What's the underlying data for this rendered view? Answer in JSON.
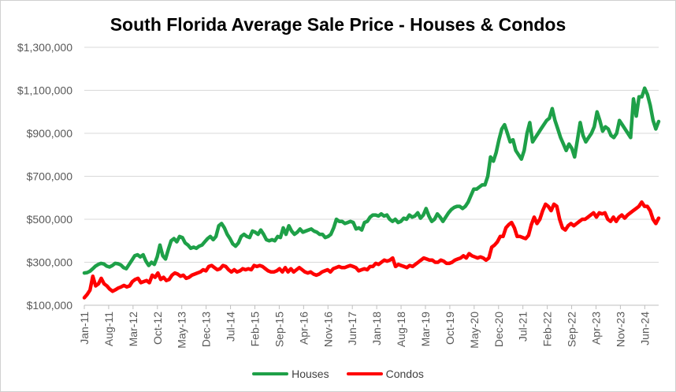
{
  "chart_data": {
    "type": "line",
    "title": "South Florida Average Sale Price - Houses & Condos",
    "ylim": [
      100000,
      1300000
    ],
    "yticks": [
      100000,
      300000,
      500000,
      700000,
      900000,
      1100000,
      1300000
    ],
    "ytick_labels": [
      "$100,000",
      "$300,000",
      "$500,000",
      "$700,000",
      "$900,000",
      "$1,100,000",
      "$1,300,000"
    ],
    "xtick_labels": [
      "Jan-11",
      "Aug-11",
      "Mar-12",
      "Oct-12",
      "May-13",
      "Dec-13",
      "Jul-14",
      "Feb-15",
      "Sep-15",
      "Apr-16",
      "Nov-16",
      "Jun-17",
      "Jan-18",
      "Aug-18",
      "Mar-19",
      "Oct-19",
      "May-20",
      "Dec-20",
      "Jul-21",
      "Feb-22",
      "Sep-22",
      "Apr-23",
      "Nov-23",
      "Jun-24"
    ],
    "x_start": "Jan-11",
    "x_end": "Oct-24",
    "grid": "horizontal",
    "legend_position": "bottom",
    "series": [
      {
        "name": "Houses",
        "color": "#1ea048",
        "values": [
          250000,
          252000,
          258000,
          270000,
          282000,
          290000,
          295000,
          292000,
          282000,
          278000,
          285000,
          295000,
          293000,
          288000,
          275000,
          270000,
          290000,
          310000,
          330000,
          335000,
          325000,
          335000,
          305000,
          285000,
          300000,
          290000,
          325000,
          380000,
          330000,
          315000,
          360000,
          400000,
          410000,
          395000,
          420000,
          415000,
          390000,
          380000,
          365000,
          370000,
          365000,
          375000,
          380000,
          395000,
          410000,
          420000,
          405000,
          420000,
          470000,
          480000,
          460000,
          430000,
          410000,
          385000,
          375000,
          390000,
          420000,
          430000,
          420000,
          415000,
          445000,
          440000,
          430000,
          450000,
          430000,
          405000,
          400000,
          405000,
          400000,
          420000,
          415000,
          460000,
          430000,
          470000,
          445000,
          430000,
          440000,
          455000,
          440000,
          445000,
          450000,
          455000,
          445000,
          440000,
          430000,
          430000,
          415000,
          420000,
          430000,
          460000,
          500000,
          490000,
          490000,
          480000,
          485000,
          490000,
          485000,
          455000,
          460000,
          450000,
          485000,
          490000,
          510000,
          520000,
          520000,
          515000,
          525000,
          515000,
          520000,
          500000,
          490000,
          500000,
          485000,
          490000,
          505000,
          500000,
          520000,
          510000,
          515000,
          530000,
          505000,
          520000,
          550000,
          515000,
          490000,
          500000,
          525000,
          510000,
          490000,
          510000,
          530000,
          545000,
          555000,
          560000,
          560000,
          550000,
          560000,
          580000,
          610000,
          640000,
          640000,
          650000,
          660000,
          660000,
          700000,
          790000,
          770000,
          810000,
          870000,
          920000,
          940000,
          900000,
          860000,
          870000,
          820000,
          800000,
          780000,
          820000,
          900000,
          950000,
          860000,
          880000,
          900000,
          920000,
          940000,
          960000,
          970000,
          1015000,
          960000,
          920000,
          880000,
          850000,
          820000,
          850000,
          830000,
          790000,
          870000,
          950000,
          890000,
          860000,
          880000,
          900000,
          930000,
          1000000,
          960000,
          910000,
          930000,
          920000,
          890000,
          880000,
          900000,
          960000,
          940000,
          920000,
          900000,
          880000,
          1060000,
          980000,
          1070000,
          1070000,
          1110000,
          1080000,
          1030000,
          960000,
          920000,
          955000
        ]
      },
      {
        "name": "Condos",
        "color": "#ff0000",
        "values": [
          135000,
          150000,
          170000,
          235000,
          190000,
          200000,
          225000,
          200000,
          190000,
          175000,
          165000,
          172000,
          180000,
          185000,
          192000,
          185000,
          190000,
          210000,
          220000,
          225000,
          205000,
          210000,
          215000,
          205000,
          240000,
          230000,
          250000,
          220000,
          230000,
          215000,
          220000,
          240000,
          250000,
          245000,
          235000,
          240000,
          225000,
          230000,
          240000,
          245000,
          250000,
          255000,
          265000,
          260000,
          280000,
          285000,
          275000,
          265000,
          270000,
          285000,
          280000,
          265000,
          255000,
          265000,
          255000,
          260000,
          270000,
          265000,
          270000,
          265000,
          285000,
          280000,
          285000,
          280000,
          270000,
          260000,
          255000,
          255000,
          260000,
          270000,
          255000,
          275000,
          255000,
          270000,
          255000,
          265000,
          275000,
          265000,
          255000,
          250000,
          255000,
          245000,
          240000,
          245000,
          255000,
          260000,
          265000,
          255000,
          270000,
          275000,
          280000,
          275000,
          275000,
          280000,
          285000,
          280000,
          275000,
          260000,
          265000,
          270000,
          265000,
          280000,
          280000,
          295000,
          290000,
          300000,
          310000,
          305000,
          310000,
          320000,
          280000,
          290000,
          285000,
          280000,
          275000,
          285000,
          280000,
          290000,
          300000,
          310000,
          320000,
          315000,
          310000,
          310000,
          300000,
          300000,
          310000,
          305000,
          295000,
          295000,
          300000,
          310000,
          315000,
          320000,
          330000,
          320000,
          340000,
          330000,
          325000,
          320000,
          325000,
          320000,
          310000,
          320000,
          370000,
          380000,
          395000,
          420000,
          420000,
          460000,
          475000,
          485000,
          460000,
          420000,
          420000,
          415000,
          410000,
          425000,
          475000,
          510000,
          480000,
          500000,
          540000,
          570000,
          560000,
          540000,
          570000,
          560000,
          500000,
          460000,
          450000,
          470000,
          480000,
          470000,
          480000,
          490000,
          500000,
          500000,
          510000,
          520000,
          530000,
          510000,
          530000,
          525000,
          530000,
          500000,
          490000,
          510000,
          490000,
          510000,
          520000,
          505000,
          520000,
          530000,
          540000,
          550000,
          560000,
          580000,
          560000,
          560000,
          540000,
          500000,
          480000,
          505000
        ]
      }
    ]
  }
}
